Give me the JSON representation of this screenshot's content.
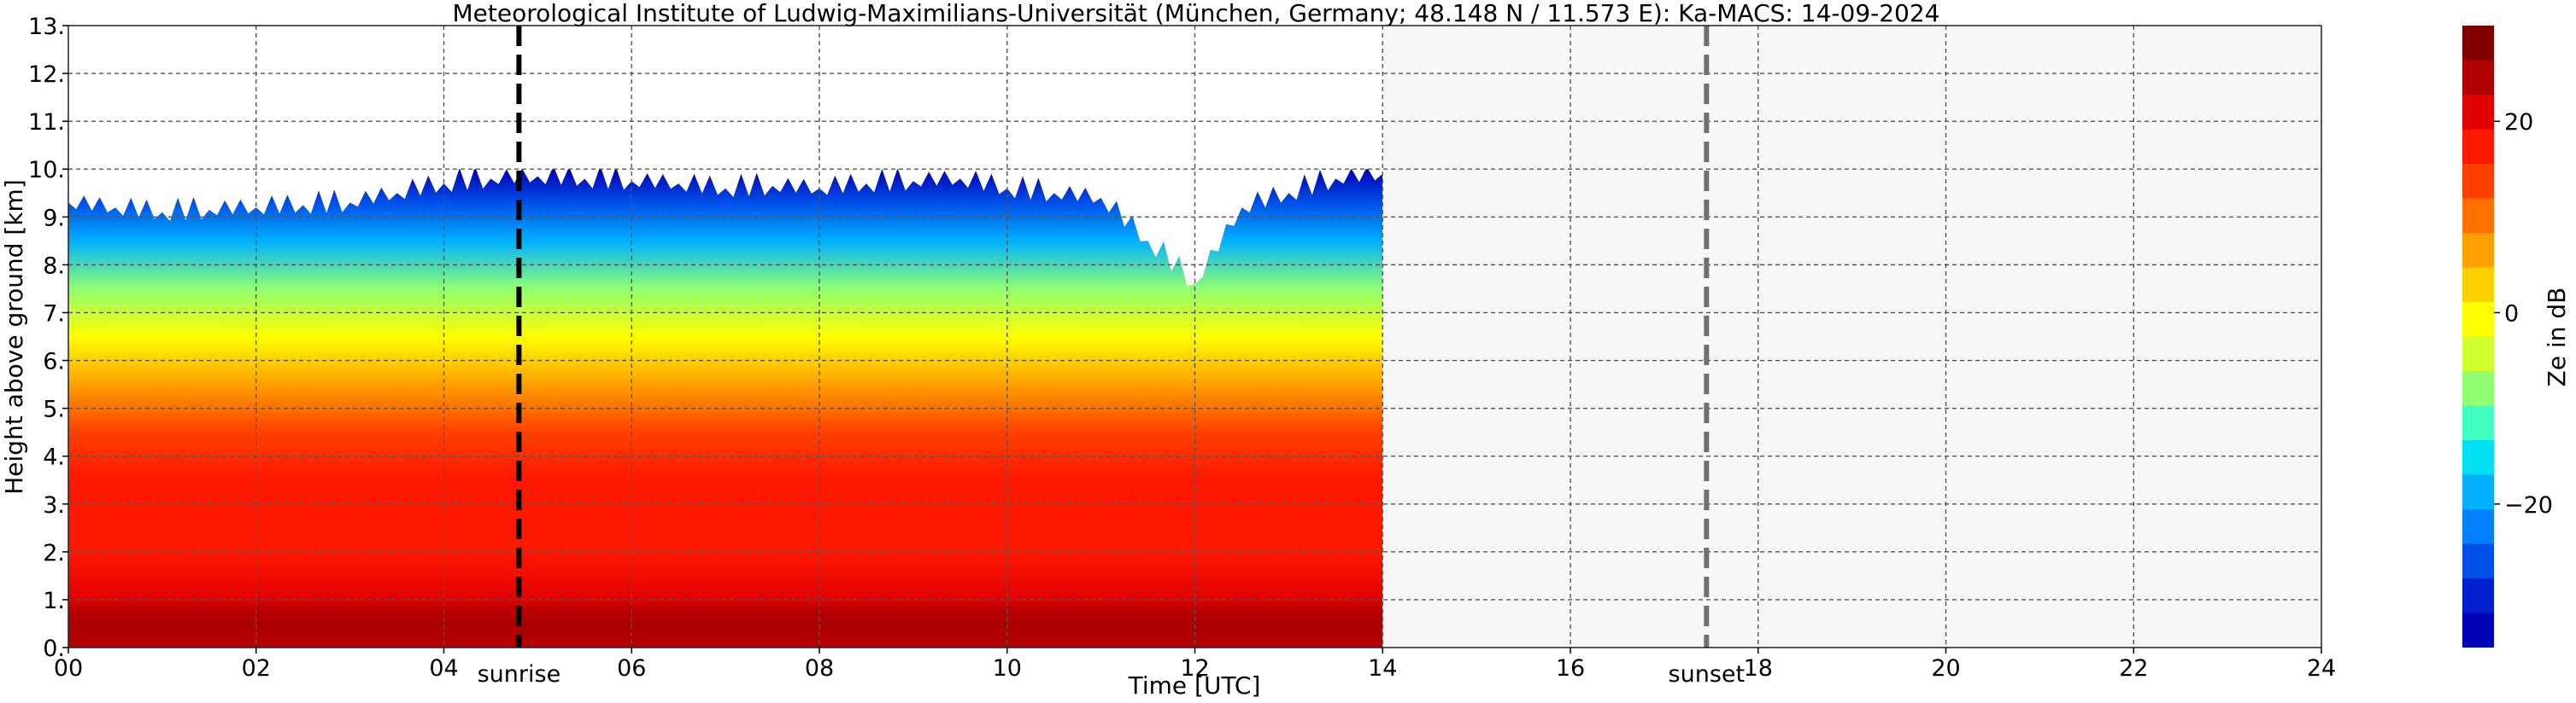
{
  "chart_data": {
    "type": "heatmap",
    "title": "Meteorological Institute of Ludwig-Maximilians-Universität (München, Germany; 48.148 N / 11.573 E):    Ka-MACS: 14-09-2024",
    "xlabel": "Time [UTC]",
    "ylabel": "Height above ground [km]",
    "xlim": [
      0,
      24
    ],
    "ylim": [
      0,
      13
    ],
    "x_ticks": [
      0,
      2,
      4,
      6,
      8,
      10,
      12,
      14,
      16,
      18,
      20,
      22,
      24
    ],
    "x_tick_labels": [
      "00",
      "02",
      "04",
      "06",
      "08",
      "10",
      "12",
      "14",
      "16",
      "18",
      "20",
      "22",
      "24"
    ],
    "y_ticks": [
      0,
      1,
      2,
      3,
      4,
      5,
      6,
      7,
      8,
      9,
      10,
      11,
      12,
      13
    ],
    "y_tick_labels": [
      "0.",
      "1.",
      "2.",
      "3.",
      "4.",
      "5.",
      "6.",
      "7.",
      "8.",
      "9.",
      "10.",
      "11.",
      "12.",
      "13."
    ],
    "grid": true,
    "data_end_hour": 14,
    "markers": [
      {
        "label": "sunrise",
        "hour": 4.8,
        "color": "#000000"
      },
      {
        "label": "sunset",
        "hour": 17.45,
        "color": "#707070"
      }
    ],
    "echo_top_km": [
      [
        0.0,
        9.3
      ],
      [
        0.5,
        9.2
      ],
      [
        1.0,
        9.1
      ],
      [
        1.5,
        9.15
      ],
      [
        2.0,
        9.2
      ],
      [
        2.5,
        9.25
      ],
      [
        3.0,
        9.3
      ],
      [
        3.5,
        9.5
      ],
      [
        4.0,
        9.7
      ],
      [
        4.5,
        9.8
      ],
      [
        5.0,
        9.85
      ],
      [
        5.5,
        9.8
      ],
      [
        6.0,
        9.75
      ],
      [
        6.5,
        9.7
      ],
      [
        7.0,
        9.6
      ],
      [
        7.5,
        9.65
      ],
      [
        8.0,
        9.6
      ],
      [
        8.5,
        9.7
      ],
      [
        9.0,
        9.75
      ],
      [
        9.5,
        9.8
      ],
      [
        10.0,
        9.6
      ],
      [
        10.5,
        9.5
      ],
      [
        11.0,
        9.4
      ],
      [
        11.5,
        8.5
      ],
      [
        12.0,
        7.6
      ],
      [
        12.5,
        9.2
      ],
      [
        13.0,
        9.5
      ],
      [
        13.5,
        9.8
      ],
      [
        14.0,
        9.9
      ]
    ],
    "reflectivity_profile": [
      {
        "height_km": 0.0,
        "ze_db": 26
      },
      {
        "height_km": 0.5,
        "ze_db": 27
      },
      {
        "height_km": 1.0,
        "ze_db": 20
      },
      {
        "height_km": 2.0,
        "ze_db": 18
      },
      {
        "height_km": 3.5,
        "ze_db": 16
      },
      {
        "height_km": 4.5,
        "ze_db": 12
      },
      {
        "height_km": 5.5,
        "ze_db": 5
      },
      {
        "height_km": 6.5,
        "ze_db": -1
      },
      {
        "height_km": 7.5,
        "ze_db": -8
      },
      {
        "height_km": 8.5,
        "ze_db": -17
      },
      {
        "height_km": 9.3,
        "ze_db": -27
      },
      {
        "height_km": 10.0,
        "ze_db": -32
      }
    ],
    "colorbar": {
      "label": "Ze in dB",
      "range": [
        -35,
        30
      ],
      "ticks": [
        20,
        0,
        -20
      ],
      "tick_labels": [
        "20",
        "0",
        "−20"
      ],
      "colors": [
        "#0000b4",
        "#0020d0",
        "#0050e8",
        "#0080ff",
        "#00b0ff",
        "#00e0f0",
        "#40ffc0",
        "#90ff70",
        "#d0ff30",
        "#ffff00",
        "#ffd000",
        "#ffa000",
        "#ff7000",
        "#ff4000",
        "#ff1800",
        "#e00000",
        "#b00000",
        "#800000"
      ]
    }
  }
}
